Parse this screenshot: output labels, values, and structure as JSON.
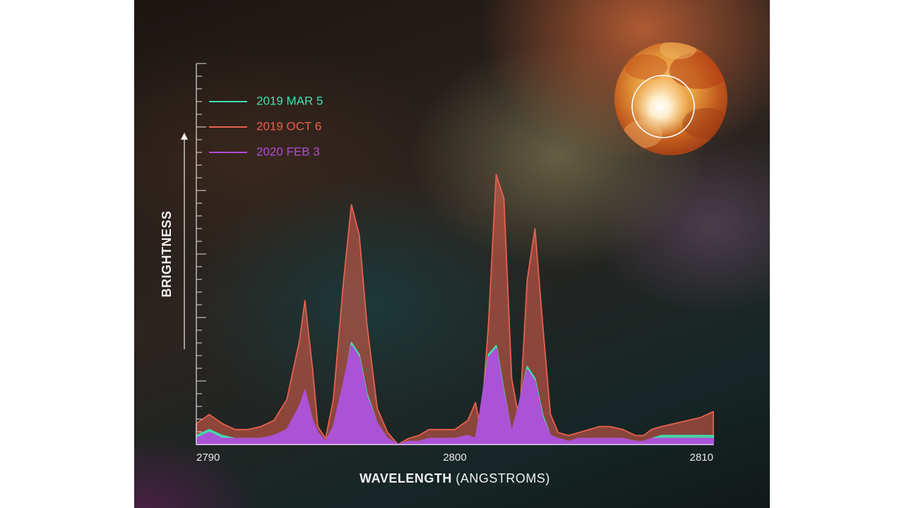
{
  "chart_data": {
    "type": "area",
    "xlabel": "WAVELENGTH",
    "xlabel_unit": "(ANGSTROMS)",
    "ylabel": "BRIGHTNESS",
    "xlim": [
      2790,
      2810
    ],
    "ylim": [
      0,
      100
    ],
    "x_ticks": [
      "2790",
      "2800",
      "2810"
    ],
    "x_tick_values": [
      2790,
      2800,
      2810
    ],
    "x": [
      2790,
      2790.5,
      2791,
      2791.5,
      2792,
      2792.5,
      2793,
      2793.5,
      2794,
      2794.2,
      2794.5,
      2794.7,
      2795,
      2795.3,
      2795.7,
      2796,
      2796.3,
      2796.6,
      2797,
      2797.4,
      2797.8,
      2798.2,
      2798.6,
      2799,
      2799.5,
      2800,
      2800.5,
      2800.8,
      2801,
      2801.3,
      2801.6,
      2801.9,
      2802.2,
      2802.5,
      2802.8,
      2803.1,
      2803.4,
      2803.7,
      2804,
      2804.4,
      2804.8,
      2805.2,
      2805.6,
      2806,
      2806.5,
      2807,
      2807.3,
      2807.6,
      2808,
      2808.5,
      2809,
      2809.5,
      2810
    ],
    "series": [
      {
        "name": "2019 MAR 5",
        "color": "#3de0b0",
        "values": [
          3,
          5,
          3,
          2,
          2,
          2,
          3,
          5,
          12,
          18,
          8,
          4,
          1,
          6,
          20,
          34,
          30,
          17,
          7,
          2,
          0,
          1,
          1,
          2,
          2,
          2,
          3,
          2,
          12,
          30,
          33,
          18,
          4,
          14,
          26,
          22,
          10,
          3,
          2,
          1,
          2,
          2,
          2,
          2,
          2,
          1,
          1,
          2,
          3,
          3,
          3,
          3,
          3
        ]
      },
      {
        "name": "2019 OCT 6",
        "color": "#e8604f",
        "values": [
          7,
          10,
          7,
          5,
          5,
          6,
          8,
          15,
          35,
          48,
          25,
          6,
          2,
          15,
          55,
          80,
          70,
          40,
          12,
          4,
          0,
          2,
          3,
          5,
          5,
          5,
          8,
          14,
          5,
          40,
          90,
          82,
          22,
          8,
          55,
          72,
          40,
          10,
          4,
          3,
          4,
          5,
          6,
          6,
          5,
          3,
          3,
          5,
          6,
          7,
          8,
          9,
          11
        ]
      },
      {
        "name": "2020 FEB 3",
        "color": "#b14cd8",
        "values": [
          2,
          4,
          2,
          2,
          2,
          2,
          3,
          5,
          13,
          18,
          8,
          4,
          1,
          6,
          21,
          33,
          29,
          16,
          7,
          2,
          0,
          1,
          1,
          2,
          2,
          2,
          3,
          2,
          12,
          29,
          32,
          17,
          4,
          14,
          25,
          21,
          9,
          3,
          2,
          1,
          2,
          2,
          2,
          2,
          2,
          1,
          1,
          2,
          2,
          2,
          2,
          2,
          2
        ]
      }
    ],
    "legend_position": "top-left",
    "grid": false
  },
  "colors": {
    "axis": "#dddddd",
    "mar5": "#3de0b0",
    "oct6": "#e8604f",
    "feb3": "#b14cd8"
  },
  "inset": {
    "icon": "star-betelgeuse-image"
  }
}
